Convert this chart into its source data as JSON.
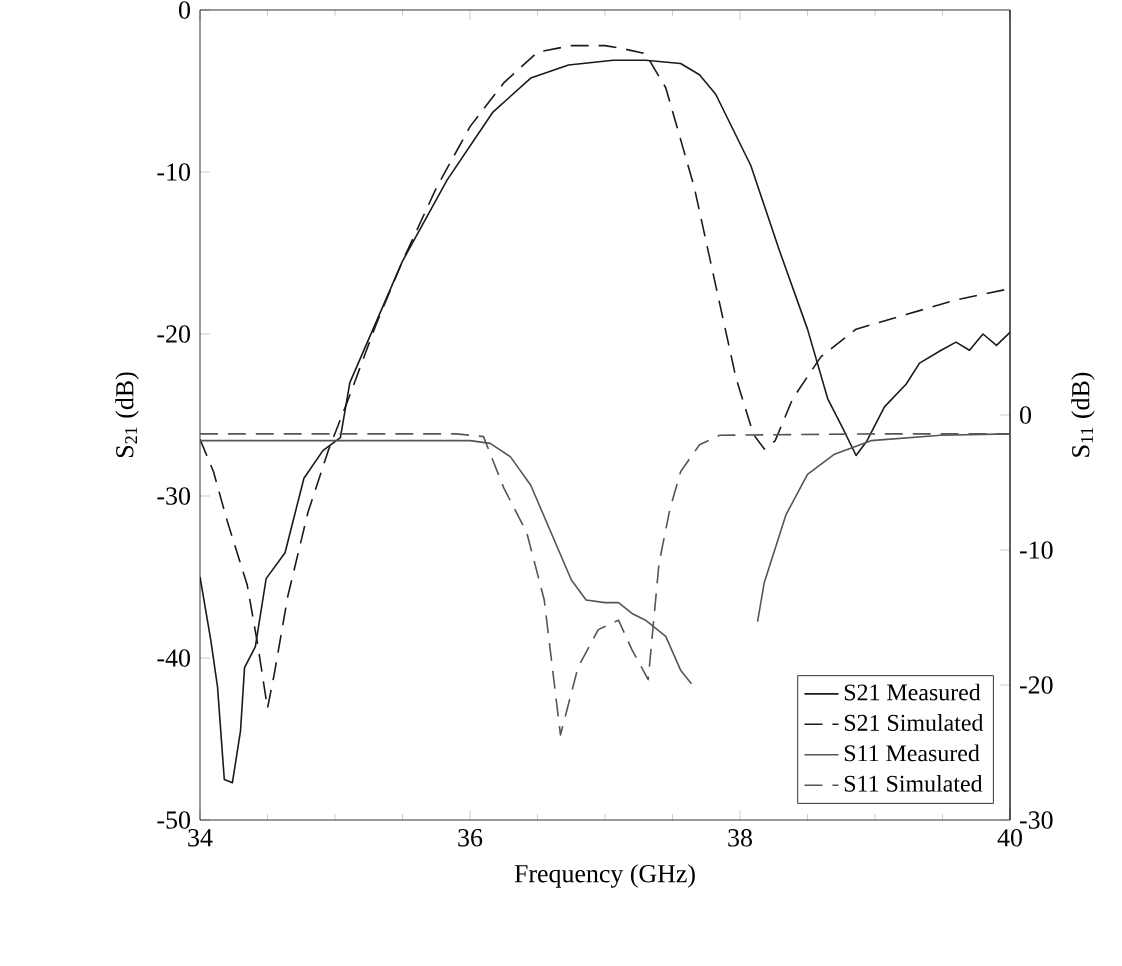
{
  "chart_data": {
    "type": "line",
    "xlabel": "Frequency (GHz)",
    "ylabel": "S$_{21}$ (dB)",
    "y2label": "S$_{11}$ (dB)",
    "xlim": [
      34,
      40
    ],
    "xticks": [
      34,
      36,
      38,
      40
    ],
    "ylim": [
      -50,
      0
    ],
    "yticks": [
      -50,
      -40,
      -30,
      -20,
      -10,
      0
    ],
    "y2lim": [
      -30,
      30
    ],
    "y2ticks": [
      -30,
      -20,
      -10,
      0
    ],
    "legend": "bottom right",
    "series": [
      {
        "name": "S21 Measured",
        "color": "#1a1a1a",
        "line_style": "solid",
        "x": [
          34.0,
          34.08,
          34.13,
          34.18,
          34.24,
          34.3,
          34.33,
          34.41,
          34.49,
          34.63,
          34.77,
          34.91,
          35.04,
          35.11,
          35.5,
          35.83,
          36.17,
          36.45,
          36.73,
          37.06,
          37.3,
          37.56,
          37.7,
          37.82,
          38.08,
          38.29,
          38.5,
          38.65,
          38.76,
          38.86,
          38.94,
          39.07,
          39.23,
          39.33,
          39.49,
          39.6,
          39.7,
          39.8,
          39.9,
          40.0
        ],
        "values": [
          -35,
          -38.9,
          -41.8,
          -47.5,
          -47.7,
          -44.5,
          -40.6,
          -39.3,
          -35.1,
          -33.5,
          -28.9,
          -27.2,
          -26.4,
          -23,
          -15.5,
          -10.5,
          -6.3,
          -4.2,
          -3.4,
          -3.1,
          -3.1,
          -3.3,
          -4.0,
          -5.2,
          -9.6,
          -14.8,
          -19.7,
          -24,
          -25.8,
          -27.5,
          -26.6,
          -24.5,
          -23.1,
          -21.8,
          -21,
          -20.5,
          -21,
          -20,
          -20.7,
          -19.9
        ]
      },
      {
        "name": "S21 Simulated",
        "color": "#1a1a1a",
        "line_style": "dashed",
        "x": [
          34.0,
          34.1,
          34.2,
          34.35,
          34.43,
          34.5,
          34.55,
          34.65,
          34.8,
          34.95,
          35.1,
          35.3,
          35.5,
          35.75,
          36.0,
          36.25,
          36.5,
          36.75,
          37.0,
          37.14,
          37.3,
          37.45,
          37.66,
          37.82,
          37.97,
          38.1,
          38.18,
          38.26,
          38.39,
          38.6,
          38.86,
          39.23,
          39.6,
          40.0
        ],
        "values": [
          -26.5,
          -28.5,
          -31.5,
          -35.5,
          -39.3,
          -43.1,
          -41,
          -36.2,
          -31,
          -27.2,
          -24,
          -19.5,
          -15.5,
          -11,
          -7.2,
          -4.5,
          -2.6,
          -2.2,
          -2.2,
          -2.4,
          -2.7,
          -4.8,
          -10.9,
          -17,
          -22.7,
          -26.2,
          -27.1,
          -26.6,
          -24,
          -21.4,
          -19.7,
          -18.8,
          -17.9,
          -17.2
        ]
      },
      {
        "name": "S11 Measured",
        "color": "#555555",
        "line_style": "solid",
        "axis": "y2",
        "x": [
          34.0,
          35.0,
          36.0,
          36.15,
          36.3,
          36.45,
          36.6,
          36.75,
          36.86,
          37.0,
          37.1,
          37.2,
          37.3,
          37.45,
          37.56,
          37.64,
          37.9,
          38.13,
          38.18,
          38.34,
          38.5,
          38.7,
          38.97,
          39.49,
          40.0
        ],
        "values": [
          -1.9,
          -1.9,
          -1.9,
          -2.1,
          -3.1,
          -5.2,
          -8.7,
          -12.2,
          -13.7,
          -13.9,
          -13.9,
          -14.7,
          -15.2,
          -16.4,
          -18.9,
          -19.9,
          null,
          -15.3,
          -12.4,
          -7.4,
          -4.4,
          -2.9,
          -1.9,
          -1.5,
          -1.4
        ]
      },
      {
        "name": "S11 Simulated",
        "color": "#555555",
        "line_style": "dashed",
        "axis": "y2",
        "x": [
          34.0,
          35.0,
          35.9,
          36.1,
          36.25,
          36.42,
          36.55,
          36.67,
          36.8,
          36.95,
          37.1,
          37.2,
          37.32,
          37.4,
          37.48,
          37.56,
          37.7,
          37.85,
          39.0,
          40.0
        ],
        "values": [
          -1.4,
          -1.4,
          -1.4,
          -1.6,
          -5.4,
          -8.7,
          -13.7,
          -23.7,
          -18.7,
          -15.9,
          -15.2,
          -17.4,
          -19.6,
          -11,
          -7,
          -4.2,
          -2.2,
          -1.5,
          -1.4,
          -1.4
        ]
      }
    ]
  }
}
